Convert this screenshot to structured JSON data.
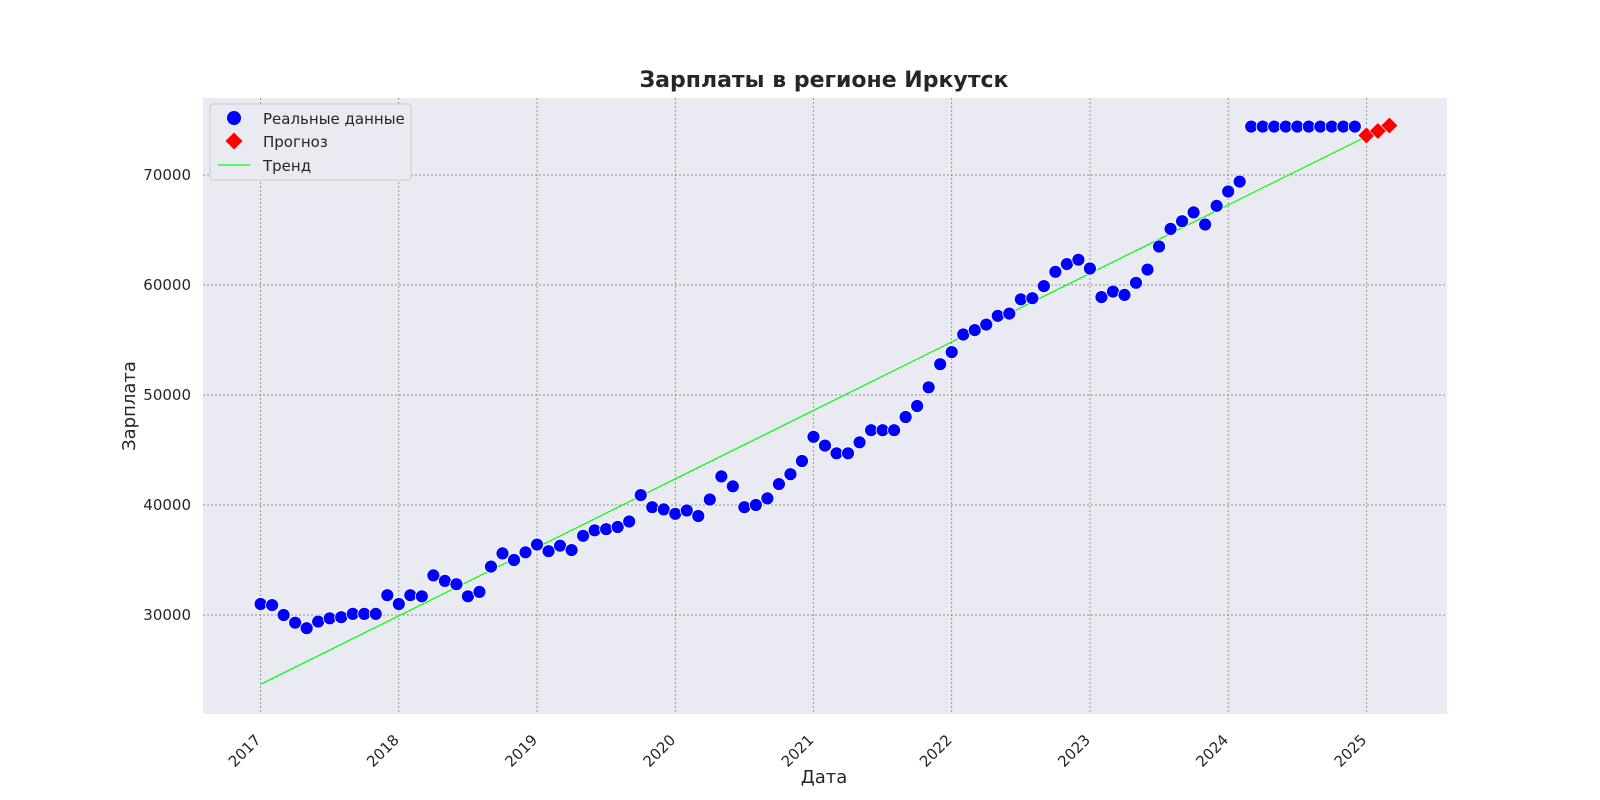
{
  "chart_data": {
    "type": "scatter",
    "title": "Зарплаты в регионе Иркутск",
    "xlabel": "Дата",
    "ylabel": "Зарплата",
    "x_ticks": [
      "2017",
      "2018",
      "2019",
      "2020",
      "2021",
      "2022",
      "2023",
      "2024",
      "2025"
    ],
    "y_ticks": [
      "30000",
      "40000",
      "50000",
      "60000",
      "70000"
    ],
    "xlim": [
      "2016-08",
      "2025-08"
    ],
    "ylim": [
      21000,
      77000
    ],
    "grid": true,
    "legend_position": "top-left",
    "series": [
      {
        "name": "Реальные данные",
        "marker": "circle",
        "color": "#0000ff",
        "x": [
          "2017-01",
          "2017-02",
          "2017-03",
          "2017-04",
          "2017-05",
          "2017-06",
          "2017-07",
          "2017-08",
          "2017-09",
          "2017-10",
          "2017-11",
          "2017-12",
          "2018-01",
          "2018-02",
          "2018-03",
          "2018-04",
          "2018-05",
          "2018-06",
          "2018-07",
          "2018-08",
          "2018-09",
          "2018-10",
          "2018-11",
          "2018-12",
          "2019-01",
          "2019-02",
          "2019-03",
          "2019-04",
          "2019-05",
          "2019-06",
          "2019-07",
          "2019-08",
          "2019-09",
          "2019-10",
          "2019-11",
          "2019-12",
          "2020-01",
          "2020-02",
          "2020-03",
          "2020-04",
          "2020-05",
          "2020-06",
          "2020-07",
          "2020-08",
          "2020-09",
          "2020-10",
          "2020-11",
          "2020-12",
          "2021-01",
          "2021-02",
          "2021-03",
          "2021-04",
          "2021-05",
          "2021-06",
          "2021-07",
          "2021-08",
          "2021-09",
          "2021-10",
          "2021-11",
          "2021-12",
          "2022-01",
          "2022-02",
          "2022-03",
          "2022-04",
          "2022-05",
          "2022-06",
          "2022-07",
          "2022-08",
          "2022-09",
          "2022-10",
          "2022-11",
          "2022-12",
          "2023-01",
          "2023-02",
          "2023-03",
          "2023-04",
          "2023-05",
          "2023-06",
          "2023-07",
          "2023-08",
          "2023-09",
          "2023-10",
          "2023-11",
          "2023-12",
          "2024-01",
          "2024-02",
          "2024-03",
          "2024-04",
          "2024-05",
          "2024-06",
          "2024-07",
          "2024-08",
          "2024-09",
          "2024-10",
          "2024-11",
          "2024-12"
        ],
        "y": [
          31000,
          30900,
          30000,
          29300,
          28800,
          29400,
          29700,
          29800,
          30100,
          30100,
          30100,
          31800,
          31000,
          31800,
          31700,
          33600,
          33100,
          32800,
          31700,
          32100,
          34400,
          35600,
          35000,
          35700,
          36400,
          35800,
          36300,
          35900,
          37200,
          37700,
          37800,
          38000,
          38500,
          40900,
          39800,
          39600,
          39200,
          39500,
          39000,
          40500,
          42600,
          41700,
          39800,
          40000,
          40600,
          41900,
          42800,
          44000,
          46200,
          45400,
          44700,
          44700,
          45700,
          46800,
          46800,
          46800,
          48000,
          49000,
          50700,
          52800,
          53900,
          55500,
          55900,
          56400,
          57200,
          57400,
          58700,
          58800,
          59900,
          61200,
          61900,
          62300,
          61500,
          58900,
          59400,
          59100,
          60200,
          61400,
          63500,
          65100,
          65800,
          66600,
          65500,
          67200,
          68500,
          69400,
          74400,
          74400,
          74400,
          74400,
          74400,
          74400,
          74400,
          74400,
          74400,
          74400
        ]
      },
      {
        "name": "Прогноз",
        "marker": "diamond",
        "color": "#ff0000",
        "x": [
          "2025-01",
          "2025-02",
          "2025-03"
        ],
        "y": [
          73600,
          74000,
          74500
        ]
      },
      {
        "name": "Тренд",
        "type": "line",
        "color": "#00ff00",
        "x": [
          "2017-01",
          "2025-01"
        ],
        "y": [
          23700,
          73500
        ]
      }
    ]
  }
}
